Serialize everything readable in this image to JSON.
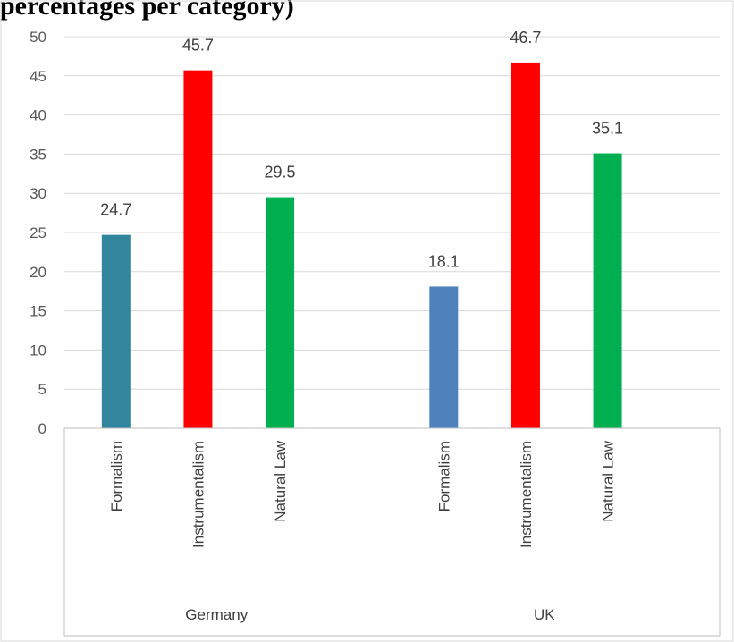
{
  "page": {
    "header_fragment": "percentages per category)"
  },
  "chart_data": {
    "type": "bar",
    "title": "",
    "xlabel": "",
    "ylabel": "",
    "ylim": [
      0,
      50
    ],
    "yticks": [
      0,
      5,
      10,
      15,
      20,
      25,
      30,
      35,
      40,
      45,
      50
    ],
    "grid": true,
    "legend": "none",
    "groups": [
      {
        "name": "Germany",
        "bars": [
          {
            "category": "Formalism",
            "value": 24.7,
            "color": "#31859C"
          },
          {
            "category": "Instrumentalism",
            "value": 45.7,
            "color": "#FF0000"
          },
          {
            "category": "Natural Law",
            "value": 29.5,
            "color": "#00B050"
          }
        ]
      },
      {
        "name": "UK",
        "bars": [
          {
            "category": "Formalism",
            "value": 18.1,
            "color": "#4F81BD"
          },
          {
            "category": "Instrumentalism",
            "value": 46.7,
            "color": "#FF0000"
          },
          {
            "category": "Natural Law",
            "value": 35.1,
            "color": "#00B050"
          }
        ]
      }
    ]
  }
}
